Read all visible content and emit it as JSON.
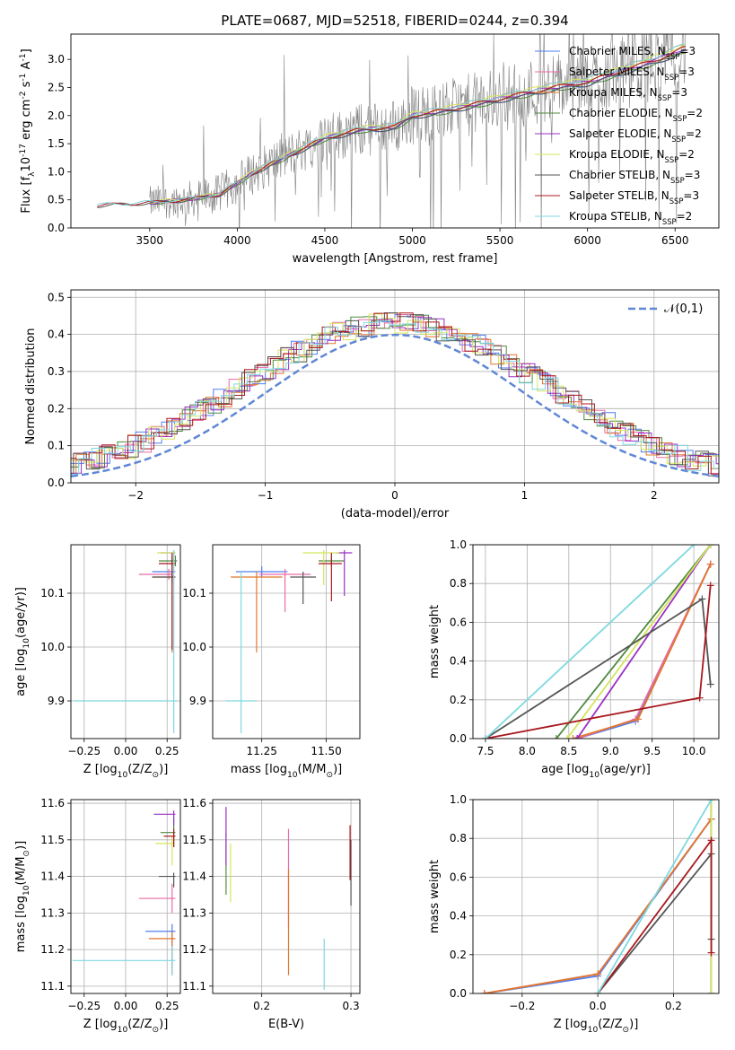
{
  "figure": {
    "title": "PLATE=0687, MJD=52518, FIBERID=0244, z=0.394"
  },
  "colors": {
    "Chabrier MILES": "#4f7ff0",
    "Salpeter MILES": "#ea6aa6",
    "Kroupa MILES": "#e0772c",
    "Chabrier ELODIE": "#4f8a3e",
    "Salpeter ELODIE": "#9a2fc4",
    "Kroupa ELODIE": "#d4e55c",
    "Chabrier STELIB": "#555555",
    "Salpeter STELIB": "#a8181e",
    "Kroupa STELIB": "#7fd8e0",
    "data": "#808080",
    "gaussian": "#5f87d6"
  },
  "chart_data": [
    {
      "id": "spectrum",
      "type": "line",
      "title": "PLATE=0687, MJD=52518, FIBERID=0244, z=0.394",
      "xlabel": "wavelength [Angstrom, rest frame]",
      "ylabel": "Flux [f$_\\lambda$10$^{-17}$ erg cm$^{-2}$ s$^{-1}$ A$^{-1}$]",
      "xlim": [
        3050,
        6750
      ],
      "ylim": [
        0,
        3.45
      ],
      "xticks": [
        3500,
        4000,
        4500,
        5000,
        5500,
        6000,
        6500
      ],
      "yticks": [
        0.0,
        0.5,
        1.0,
        1.5,
        2.0,
        2.5,
        3.0
      ],
      "legend": [
        "Chabrier MILES, N$_{SSP}$=3",
        "Salpeter MILES, N$_{SSP}$=3",
        "Kroupa MILES, N$_{SSP}$=3",
        "Chabrier ELODIE, N$_{SSP}$=2",
        "Salpeter ELODIE, N$_{SSP}$=2",
        "Kroupa ELODIE, N$_{SSP}$=2",
        "Chabrier STELIB, N$_{SSP}$=3",
        "Salpeter STELIB, N$_{SSP}$=3",
        "Kroupa STELIB, N$_{SSP}$=2"
      ],
      "legend_location": "upper right",
      "continuum_points": [
        [
          3200,
          0.4
        ],
        [
          3500,
          0.45
        ],
        [
          3700,
          0.5
        ],
        [
          3900,
          0.6
        ],
        [
          4000,
          0.8
        ],
        [
          4100,
          1.0
        ],
        [
          4300,
          1.3
        ],
        [
          4500,
          1.6
        ],
        [
          4700,
          1.75
        ],
        [
          4900,
          1.8
        ],
        [
          5000,
          2.0
        ],
        [
          5200,
          2.1
        ],
        [
          5500,
          2.3
        ],
        [
          5800,
          2.5
        ],
        [
          6000,
          2.6
        ],
        [
          6200,
          2.8
        ],
        [
          6400,
          3.0
        ],
        [
          6550,
          3.2
        ]
      ]
    },
    {
      "id": "residuals",
      "type": "histogram",
      "xlabel": "(data-model)/error",
      "ylabel": "Normed distribution",
      "xlim": [
        -2.5,
        2.5
      ],
      "ylim": [
        0,
        0.52
      ],
      "xticks": [
        -2,
        -1,
        0,
        1,
        2
      ],
      "yticks": [
        0.0,
        0.1,
        0.2,
        0.3,
        0.4,
        0.5
      ],
      "legend": [
        "$\\mathcal{N}(0,1)$"
      ],
      "legend_location": "upper right"
    },
    {
      "id": "age_vs_Z",
      "type": "scatter",
      "xlabel": "Z [log$_{10}$($Z/Z_\\odot$)]",
      "ylabel": "age  [log$_{10}$($age/yr$)]",
      "xlim": [
        -0.33,
        0.33
      ],
      "ylim": [
        9.83,
        10.19
      ],
      "xticks": [
        -0.25,
        0.0,
        0.25
      ],
      "yticks": [
        9.9,
        10.0,
        10.1
      ],
      "points": [
        {
          "model": "Chabrier MILES",
          "x": 0.28,
          "y": 10.14,
          "x_err": [
            0.12,
            0.02
          ],
          "y_err": [
            0.01,
            0.03
          ]
        },
        {
          "model": "Salpeter MILES",
          "x": 0.26,
          "y": 10.135,
          "x_err": [
            0.18,
            0.02
          ],
          "y_err": [
            0.01,
            0.01
          ]
        },
        {
          "model": "Kroupa MILES",
          "x": 0.28,
          "y": 10.13,
          "x_err": [
            0.12,
            0.02
          ],
          "y_err": [
            0.14,
            0.04
          ]
        },
        {
          "model": "Chabrier ELODIE",
          "x": 0.3,
          "y": 10.16,
          "x_err": [
            0.1,
            0.01
          ],
          "y_err": [
            0.01,
            0.01
          ]
        },
        {
          "model": "Salpeter ELODIE",
          "x": 0.29,
          "y": 10.175,
          "x_err": [
            0.08,
            0.01
          ],
          "y_err": [
            0.005,
            0.005
          ]
        },
        {
          "model": "Kroupa ELODIE",
          "x": 0.29,
          "y": 10.175,
          "x_err": [
            0.1,
            0.01
          ],
          "y_err": [
            0.005,
            0.005
          ]
        },
        {
          "model": "Chabrier STELIB",
          "x": 0.28,
          "y": 10.13,
          "x_err": [
            0.12,
            0.02
          ],
          "y_err": [
            0.01,
            0.01
          ]
        },
        {
          "model": "Salpeter STELIB",
          "x": 0.28,
          "y": 10.155,
          "x_err": [
            0.08,
            0.02
          ],
          "y_err": [
            0.16,
            0.02
          ]
        },
        {
          "model": "Kroupa STELIB",
          "x": 0.29,
          "y": 9.9,
          "x_err": [
            0.6,
            0.02
          ],
          "y_err": [
            0.06,
            0.28
          ]
        }
      ]
    },
    {
      "id": "age_vs_mass",
      "type": "scatter",
      "xlabel": "mass [log$_{10}$($M/M_\\odot$)]",
      "ylabel": "",
      "xlim": [
        11.06,
        11.63
      ],
      "ylim": [
        9.83,
        10.19
      ],
      "xticks": [
        11.25,
        11.5
      ],
      "yticks": [
        9.9,
        10.0,
        10.1
      ],
      "points": [
        {
          "model": "Chabrier MILES",
          "x": 11.25,
          "y": 10.14,
          "x_err": [
            0.1,
            0.1
          ],
          "y_err": [
            0.01,
            0.01
          ]
        },
        {
          "model": "Salpeter MILES",
          "x": 11.34,
          "y": 10.135,
          "x_err": [
            0.1,
            0.1
          ],
          "y_err": [
            0.07,
            0.01
          ]
        },
        {
          "model": "Kroupa MILES",
          "x": 11.23,
          "y": 10.13,
          "x_err": [
            0.1,
            0.1
          ],
          "y_err": [
            0.14,
            0.01
          ]
        },
        {
          "model": "Chabrier ELODIE",
          "x": 11.52,
          "y": 10.16,
          "x_err": [
            0.05,
            0.05
          ],
          "y_err": [
            0.01,
            0.01
          ]
        },
        {
          "model": "Salpeter ELODIE",
          "x": 11.57,
          "y": 10.175,
          "x_err": [
            0.03,
            0.03
          ],
          "y_err": [
            0.08,
            0.005
          ]
        },
        {
          "model": "Kroupa ELODIE",
          "x": 11.49,
          "y": 10.175,
          "x_err": [
            0.08,
            0.06
          ],
          "y_err": [
            0.06,
            0.005
          ]
        },
        {
          "model": "Chabrier STELIB",
          "x": 11.41,
          "y": 10.13,
          "x_err": [
            0.05,
            0.05
          ],
          "y_err": [
            0.05,
            0.01
          ]
        },
        {
          "model": "Salpeter STELIB",
          "x": 11.52,
          "y": 10.155,
          "x_err": [
            0.05,
            0.04
          ],
          "y_err": [
            0.07,
            0.02
          ]
        },
        {
          "model": "Kroupa STELIB",
          "x": 11.17,
          "y": 9.9,
          "x_err": [
            0.06,
            0.06
          ],
          "y_err": [
            0.06,
            0.24
          ]
        }
      ]
    },
    {
      "id": "cumulative_mass_weight_vs_age",
      "type": "line",
      "xlabel": "age  [log$_{10}$($age/yr$)]",
      "ylabel": "mass weight",
      "xlim": [
        7.35,
        10.3
      ],
      "ylim": [
        0.0,
        1.0
      ],
      "xticks": [
        7.5,
        8.0,
        8.5,
        9.0,
        9.5,
        10.0
      ],
      "yticks": [
        0.0,
        0.2,
        0.4,
        0.6,
        0.8,
        1.0
      ],
      "series": [
        {
          "model": "Chabrier MILES",
          "x": [
            8.6,
            9.3,
            10.2
          ],
          "y": [
            0.0,
            0.09,
            0.9
          ]
        },
        {
          "model": "Salpeter MILES",
          "x": [
            8.6,
            9.3,
            10.2
          ],
          "y": [
            0.0,
            0.1,
            0.9
          ]
        },
        {
          "model": "Kroupa MILES",
          "x": [
            8.55,
            9.33,
            10.2
          ],
          "y": [
            0.0,
            0.1,
            0.9
          ]
        },
        {
          "model": "Chabrier ELODIE",
          "x": [
            8.35,
            10.2
          ],
          "y": [
            0.0,
            1.0
          ]
        },
        {
          "model": "Salpeter ELODIE",
          "x": [
            8.6,
            10.2
          ],
          "y": [
            0.0,
            1.0
          ]
        },
        {
          "model": "Kroupa ELODIE",
          "x": [
            8.48,
            10.2
          ],
          "y": [
            0.0,
            1.0
          ]
        },
        {
          "model": "Chabrier STELIB",
          "x": [
            7.5,
            10.1,
            10.2
          ],
          "y": [
            0.0,
            0.72,
            0.28
          ]
        },
        {
          "model": "Salpeter STELIB",
          "x": [
            7.5,
            10.07,
            10.2
          ],
          "y": [
            0.0,
            0.21,
            0.79
          ]
        },
        {
          "model": "Kroupa STELIB",
          "x": [
            7.5,
            10.0
          ],
          "y": [
            0.0,
            1.0
          ]
        }
      ]
    },
    {
      "id": "mass_vs_Z",
      "type": "scatter",
      "xlabel": "Z [log$_{10}$($Z/Z_\\odot$)]",
      "ylabel": "mass [log$_{10}$($M/M_\\odot$)]",
      "xlim": [
        -0.33,
        0.33
      ],
      "ylim": [
        11.08,
        11.61
      ],
      "xticks": [
        -0.25,
        0.0,
        0.25
      ],
      "yticks": [
        11.1,
        11.2,
        11.3,
        11.4,
        11.5,
        11.6
      ],
      "points": [
        {
          "model": "Chabrier MILES",
          "x": 0.28,
          "y": 11.25,
          "x_err": [
            0.16,
            0.02
          ],
          "y_err": [
            0.1,
            0.02
          ]
        },
        {
          "model": "Salpeter MILES",
          "x": 0.28,
          "y": 11.34,
          "x_err": [
            0.2,
            0.02
          ],
          "y_err": [
            0.04,
            0.04
          ]
        },
        {
          "model": "Kroupa MILES",
          "x": 0.28,
          "y": 11.23,
          "x_err": [
            0.14,
            0.02
          ],
          "y_err": [
            0.1,
            0.02
          ]
        },
        {
          "model": "Chabrier ELODIE",
          "x": 0.29,
          "y": 11.52,
          "x_err": [
            0.08,
            0.01
          ],
          "y_err": [
            0.04,
            0.04
          ]
        },
        {
          "model": "Salpeter ELODIE",
          "x": 0.29,
          "y": 11.57,
          "x_err": [
            0.12,
            0.01
          ],
          "y_err": [
            0.03,
            0.01
          ]
        },
        {
          "model": "Kroupa ELODIE",
          "x": 0.28,
          "y": 11.49,
          "x_err": [
            0.1,
            0.01
          ],
          "y_err": [
            0.06,
            0.02
          ]
        },
        {
          "model": "Chabrier STELIB",
          "x": 0.29,
          "y": 11.4,
          "x_err": [
            0.09,
            0.01
          ],
          "y_err": [
            0.03,
            0.01
          ]
        },
        {
          "model": "Salpeter STELIB",
          "x": 0.29,
          "y": 11.51,
          "x_err": [
            0.06,
            0.01
          ],
          "y_err": [
            0.03,
            0.02
          ]
        },
        {
          "model": "Kroupa STELIB",
          "x": 0.28,
          "y": 11.17,
          "x_err": [
            0.6,
            0.02
          ],
          "y_err": [
            0.04,
            0.04
          ]
        }
      ]
    },
    {
      "id": "mass_vs_ebv",
      "type": "scatter",
      "xlabel": "E(B-V)",
      "ylabel": "",
      "xlim": [
        0.145,
        0.31
      ],
      "ylim": [
        11.08,
        11.61
      ],
      "xticks": [
        0.2,
        0.3
      ],
      "yticks": [
        11.1,
        11.2,
        11.3,
        11.4,
        11.5,
        11.6
      ],
      "points": [
        {
          "model": "Chabrier MILES",
          "x": 0.16,
          "y": 11.25,
          "x_err": [
            0.0,
            0.0
          ],
          "y_err": [
            0.0,
            0.0
          ]
        },
        {
          "model": "Salpeter MILES",
          "x": 0.23,
          "y": 11.34,
          "x_err": [
            0.0,
            0.0
          ],
          "y_err": [
            0.08,
            0.19
          ]
        },
        {
          "model": "Kroupa MILES",
          "x": 0.23,
          "y": 11.23,
          "x_err": [
            0.0,
            0.0
          ],
          "y_err": [
            0.1,
            0.19
          ]
        },
        {
          "model": "Chabrier ELODIE",
          "x": 0.16,
          "y": 11.52,
          "x_err": [
            0.0,
            0.0
          ],
          "y_err": [
            0.17,
            0.0
          ]
        },
        {
          "model": "Salpeter ELODIE",
          "x": 0.16,
          "y": 11.57,
          "x_err": [
            0.0,
            0.0
          ],
          "y_err": [
            0.14,
            0.02
          ]
        },
        {
          "model": "Kroupa ELODIE",
          "x": 0.165,
          "y": 11.49,
          "x_err": [
            0.0,
            0.0
          ],
          "y_err": [
            0.16,
            0.0
          ]
        },
        {
          "model": "Chabrier STELIB",
          "x": 0.3,
          "y": 11.4,
          "x_err": [
            0.0,
            0.0
          ],
          "y_err": [
            0.08,
            0.1
          ]
        },
        {
          "model": "Salpeter STELIB",
          "x": 0.299,
          "y": 11.51,
          "x_err": [
            0.0,
            0.0
          ],
          "y_err": [
            0.12,
            0.03
          ]
        },
        {
          "model": "Kroupa STELIB",
          "x": 0.27,
          "y": 11.17,
          "x_err": [
            0.0,
            0.0
          ],
          "y_err": [
            0.08,
            0.06
          ]
        }
      ]
    },
    {
      "id": "cumulative_mass_weight_vs_Z",
      "type": "line",
      "xlabel": "Z [log$_{10}$($Z/Z_\\odot$)]",
      "ylabel": "mass weight",
      "xlim": [
        -0.33,
        0.32
      ],
      "ylim": [
        0.0,
        1.0
      ],
      "xticks": [
        -0.2,
        0.0,
        0.2
      ],
      "yticks": [
        0.0,
        0.2,
        0.4,
        0.6,
        0.8,
        1.0
      ],
      "series": [
        {
          "model": "Chabrier MILES",
          "x": [
            -0.3,
            0.0,
            0.3
          ],
          "y": [
            0.0,
            0.09,
            0.9
          ]
        },
        {
          "model": "Salpeter MILES",
          "x": [
            -0.3,
            0.0,
            0.3
          ],
          "y": [
            0.0,
            0.1,
            0.9
          ]
        },
        {
          "model": "Kroupa MILES",
          "x": [
            -0.3,
            0.0,
            0.3
          ],
          "y": [
            0.0,
            0.1,
            0.9
          ]
        },
        {
          "model": "Chabrier ELODIE",
          "x": [
            0.3,
            0.3
          ],
          "y": [
            0.0,
            1.0
          ]
        },
        {
          "model": "Salpeter ELODIE",
          "x": [
            0.3,
            0.3
          ],
          "y": [
            0.0,
            1.0
          ]
        },
        {
          "model": "Kroupa ELODIE",
          "x": [
            0.3,
            0.3
          ],
          "y": [
            0.0,
            1.0
          ]
        },
        {
          "model": "Chabrier STELIB",
          "x": [
            0.0,
            0.3,
            0.3
          ],
          "y": [
            0.0,
            0.72,
            0.28
          ]
        },
        {
          "model": "Salpeter STELIB",
          "x": [
            0.0,
            0.3,
            0.3
          ],
          "y": [
            0.0,
            0.79,
            0.21
          ]
        },
        {
          "model": "Kroupa STELIB",
          "x": [
            0.0,
            0.3
          ],
          "y": [
            0.0,
            1.0
          ]
        }
      ]
    }
  ]
}
